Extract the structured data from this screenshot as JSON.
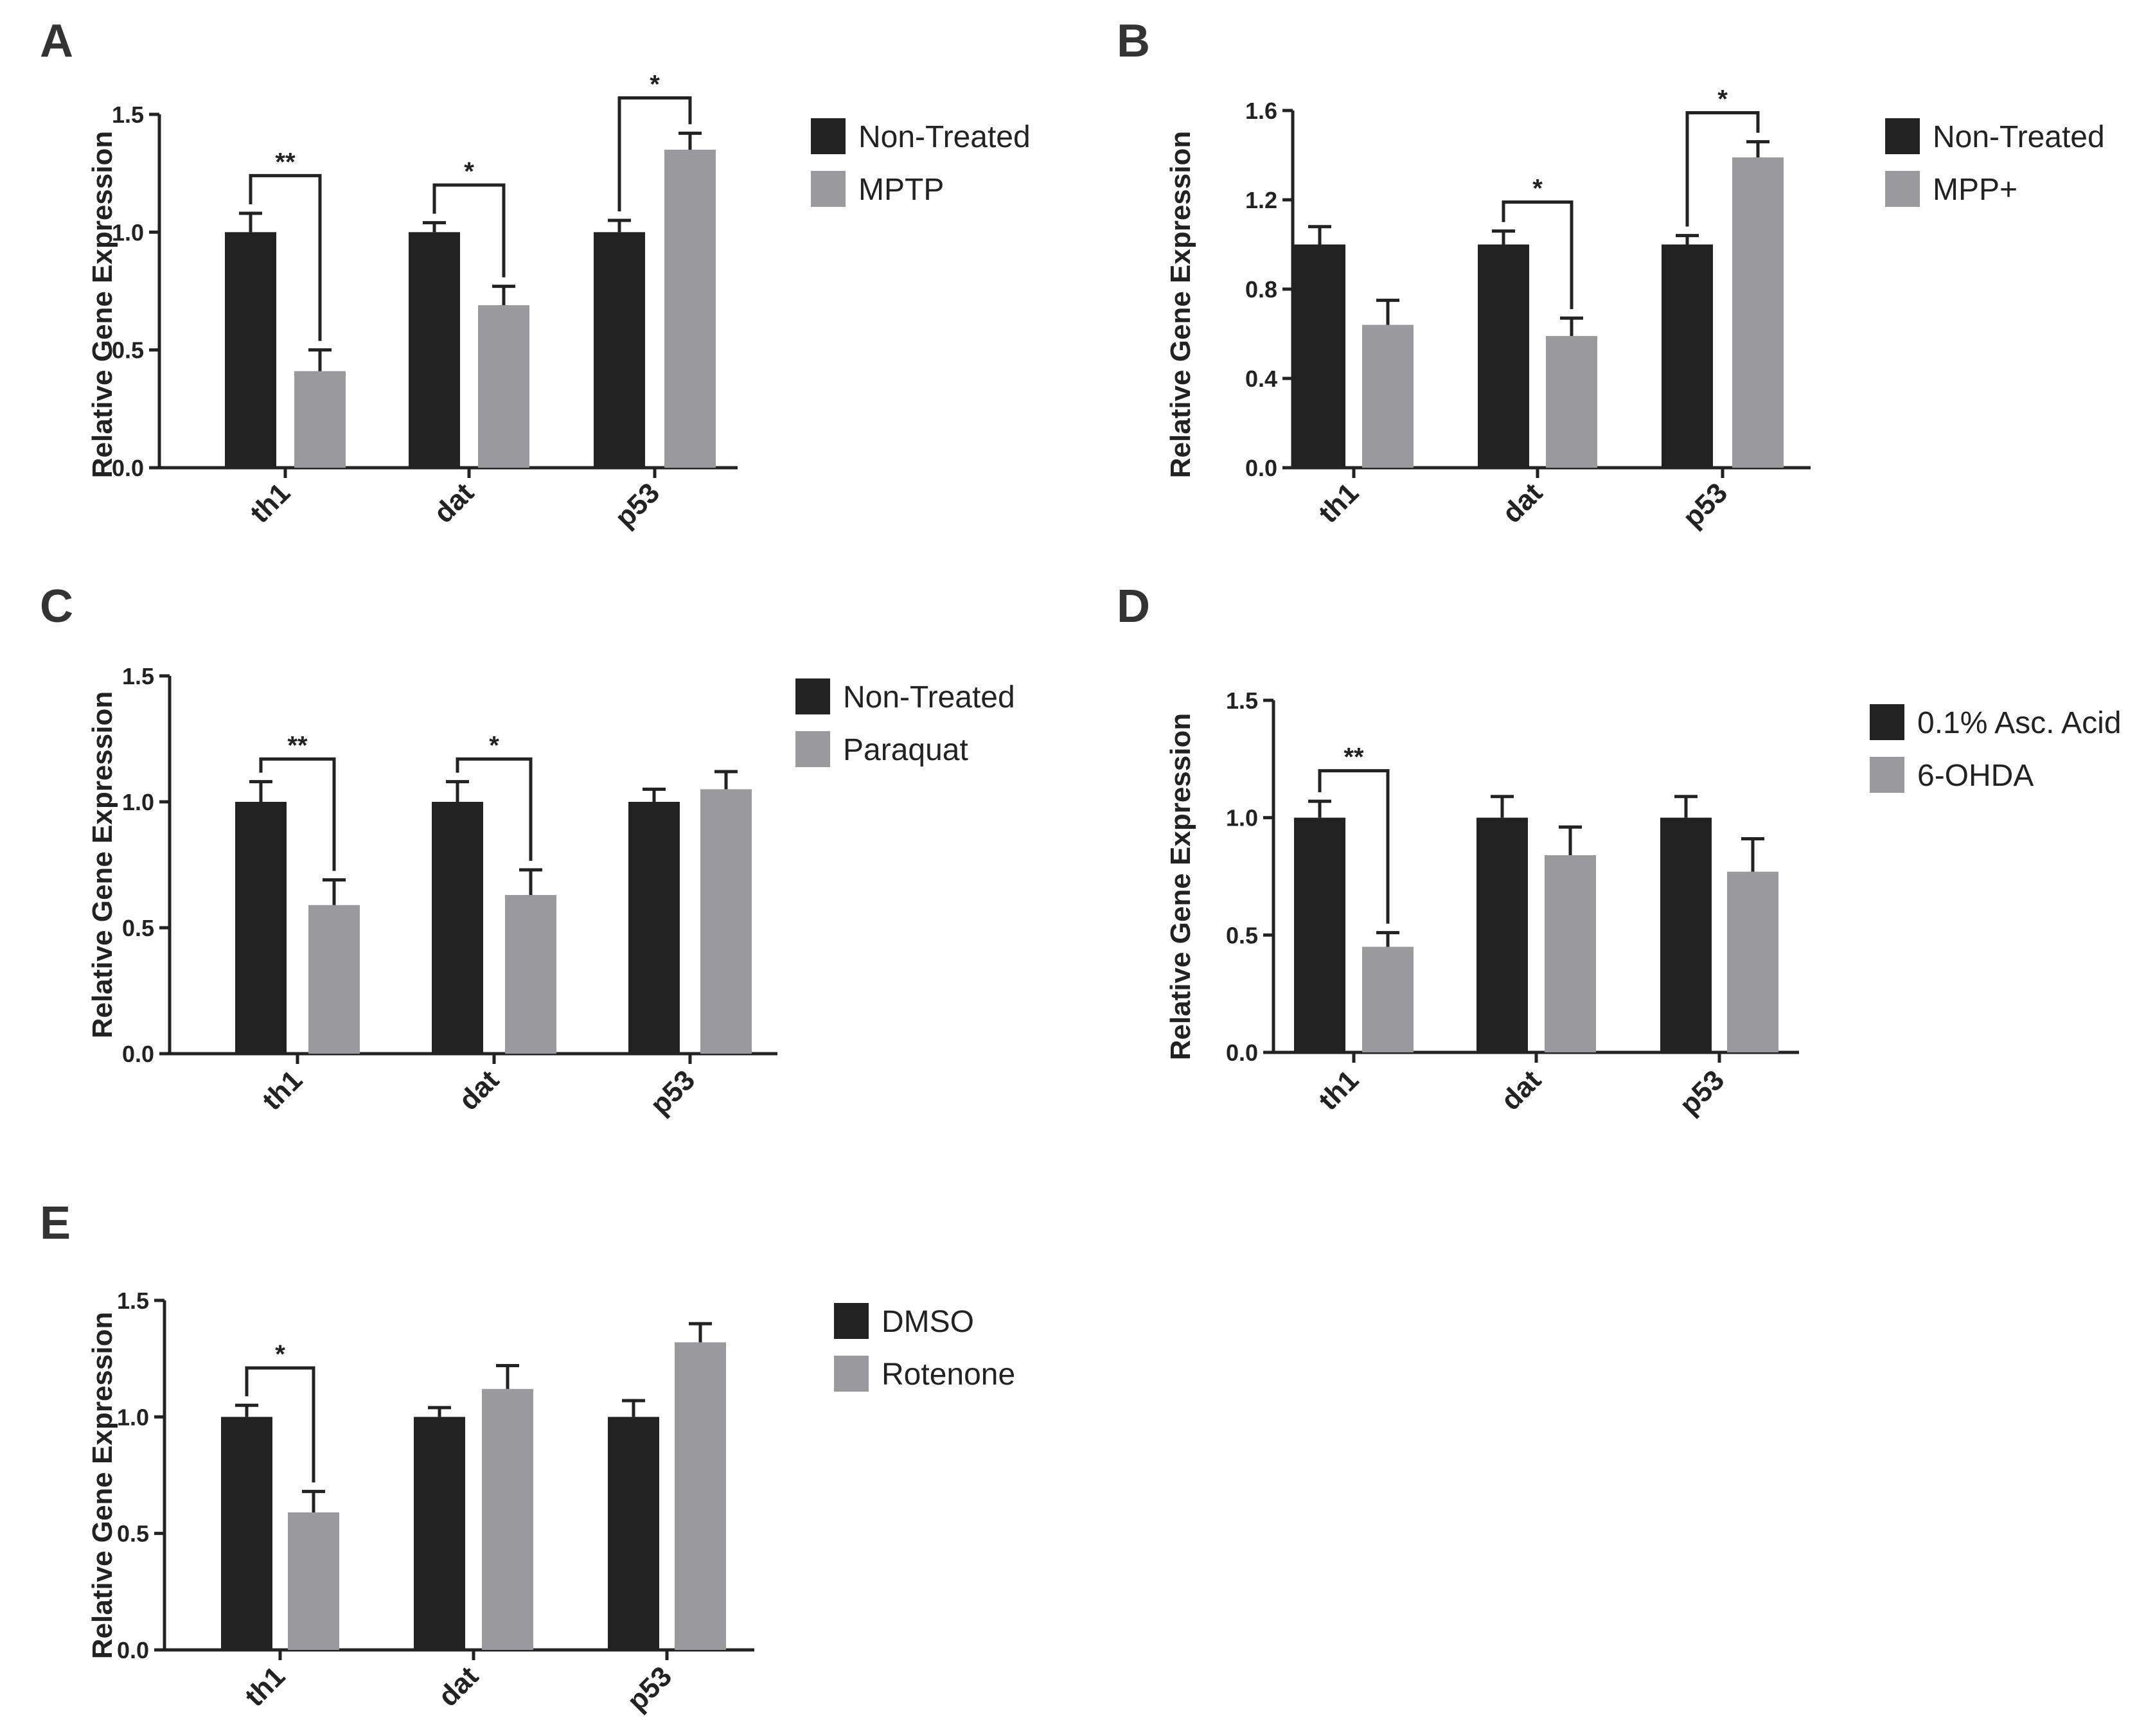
{
  "colors": {
    "control": "#222222",
    "treated": "#9a9a9c",
    "axis": "#222222"
  },
  "chart_data": [
    {
      "panel": "A",
      "type": "bar",
      "ylabel": "Relative Gene Expression",
      "categories": [
        "th1",
        "dat",
        "p53"
      ],
      "ylim": [
        0,
        1.5
      ],
      "yticks": [
        "0.0",
        "0.5",
        "1.0",
        "1.5"
      ],
      "yticks_values": [
        0,
        0.5,
        1.0,
        1.5
      ],
      "series": [
        {
          "name": "Non-Treated",
          "values": [
            1.0,
            1.0,
            1.0
          ],
          "errors": [
            0.08,
            0.04,
            0.05
          ]
        },
        {
          "name": "MPTP",
          "values": [
            0.41,
            0.69,
            1.35
          ],
          "errors": [
            0.09,
            0.08,
            0.07
          ]
        }
      ],
      "significance": [
        {
          "category": 0,
          "label": "**",
          "level": 1.24
        },
        {
          "category": 1,
          "label": "*",
          "level": 1.2
        },
        {
          "category": 2,
          "label": "*",
          "level": 1.57
        }
      ]
    },
    {
      "panel": "B",
      "type": "bar",
      "ylabel": "Relative Gene Expression",
      "categories": [
        "th1",
        "dat",
        "p53"
      ],
      "ylim": [
        0,
        1.6
      ],
      "yticks": [
        "0.0",
        "0.4",
        "0.8",
        "1.2",
        "1.6"
      ],
      "yticks_values": [
        0,
        0.4,
        0.8,
        1.2,
        1.6
      ],
      "series": [
        {
          "name": "Non-Treated",
          "values": [
            1.0,
            1.0,
            1.0
          ],
          "errors": [
            0.08,
            0.06,
            0.04
          ]
        },
        {
          "name": "MPP+",
          "values": [
            0.64,
            0.59,
            1.39
          ],
          "errors": [
            0.11,
            0.08,
            0.07
          ]
        }
      ],
      "significance": [
        {
          "category": 1,
          "label": "*",
          "level": 1.19
        },
        {
          "category": 2,
          "label": "*",
          "level": 1.59
        }
      ]
    },
    {
      "panel": "C",
      "type": "bar",
      "ylabel": "Relative Gene Expression",
      "categories": [
        "th1",
        "dat",
        "p53"
      ],
      "ylim": [
        0,
        1.5
      ],
      "yticks": [
        "0.0",
        "0.5",
        "1.0",
        "1.5"
      ],
      "yticks_values": [
        0,
        0.5,
        1.0,
        1.5
      ],
      "series": [
        {
          "name": "Non-Treated",
          "values": [
            1.0,
            1.0,
            1.0
          ],
          "errors": [
            0.08,
            0.08,
            0.05
          ]
        },
        {
          "name": "Paraquat",
          "values": [
            0.59,
            0.63,
            1.05
          ],
          "errors": [
            0.1,
            0.1,
            0.07
          ]
        }
      ],
      "significance": [
        {
          "category": 0,
          "label": "**",
          "level": 1.17
        },
        {
          "category": 1,
          "label": "*",
          "level": 1.17
        }
      ]
    },
    {
      "panel": "D",
      "type": "bar",
      "ylabel": "Relative Gene Expression",
      "categories": [
        "th1",
        "dat",
        "p53"
      ],
      "ylim": [
        0,
        1.5
      ],
      "yticks": [
        "0.0",
        "0.5",
        "1.0",
        "1.5"
      ],
      "yticks_values": [
        0,
        0.5,
        1.0,
        1.5
      ],
      "series": [
        {
          "name": "0.1% Asc. Acid",
          "values": [
            1.0,
            1.0,
            1.0
          ],
          "errors": [
            0.07,
            0.09,
            0.09
          ]
        },
        {
          "name": "6-OHDA",
          "values": [
            0.45,
            0.84,
            0.77
          ],
          "errors": [
            0.06,
            0.12,
            0.14
          ]
        }
      ],
      "significance": [
        {
          "category": 0,
          "label": "**",
          "level": 1.2
        }
      ]
    },
    {
      "panel": "E",
      "type": "bar",
      "ylabel": "Relative Gene Expression",
      "categories": [
        "th1",
        "dat",
        "p53"
      ],
      "ylim": [
        0,
        1.5
      ],
      "yticks": [
        "0.0",
        "0.5",
        "1.0",
        "1.5"
      ],
      "yticks_values": [
        0,
        0.5,
        1.0,
        1.5
      ],
      "series": [
        {
          "name": "DMSO",
          "values": [
            1.0,
            1.0,
            1.0
          ],
          "errors": [
            0.05,
            0.04,
            0.07
          ]
        },
        {
          "name": "Rotenone",
          "values": [
            0.59,
            1.12,
            1.32
          ],
          "errors": [
            0.09,
            0.1,
            0.08
          ]
        }
      ],
      "significance": [
        {
          "category": 0,
          "label": "*",
          "level": 1.21
        }
      ]
    }
  ]
}
